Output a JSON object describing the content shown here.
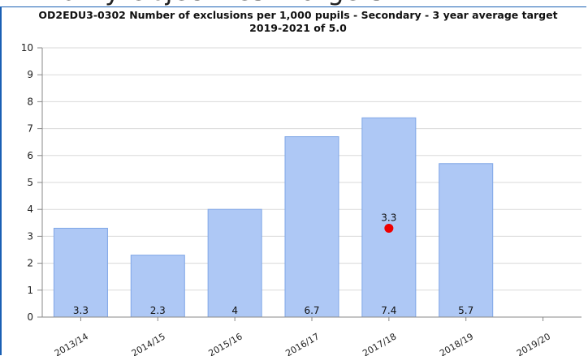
{
  "page_heading": "Priority Objectives - targets",
  "chart_data": {
    "type": "bar",
    "title_line1": "OD2EDU3-0302 Number of exclusions per 1,000 pupils - Secondary - 3 year average target",
    "title_line2": "2019-2021 of 5.0",
    "categories": [
      "2013/14",
      "2014/15",
      "2015/16",
      "2016/17",
      "2017/18",
      "2018/19",
      "2019/20"
    ],
    "values": [
      3.3,
      2.3,
      4,
      6.7,
      7.4,
      5.7,
      null
    ],
    "value_labels": [
      "3.3",
      "2.3",
      "4",
      "6.7",
      "7.4",
      "5.7",
      ""
    ],
    "ylim": [
      0,
      10
    ],
    "yticks": [
      "0",
      "1",
      "2",
      "3",
      "4",
      "5",
      "6",
      "7",
      "8",
      "9",
      "10"
    ],
    "grid": true,
    "bar_color": "#aec8f5",
    "bar_edge_color": "#7fa6e6",
    "target_marker": {
      "category": "2017/18",
      "value": 3.3,
      "label": "3.3",
      "color": "#ee0000"
    }
  }
}
